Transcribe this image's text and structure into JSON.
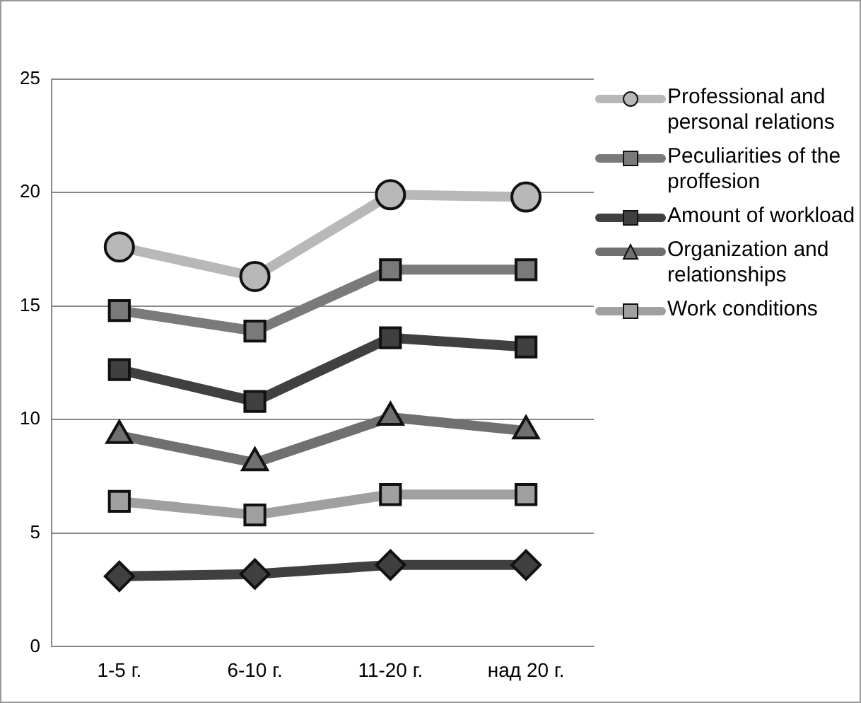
{
  "chart_data": {
    "type": "line",
    "categories": [
      "1-5 г.",
      "6-10 г.",
      "11-20 г.",
      "над 20 г."
    ],
    "series": [
      {
        "name": "Professional and personal relations",
        "color": "#b8b8b8",
        "marker": "circle",
        "values": [
          17.6,
          16.3,
          19.9,
          19.8
        ]
      },
      {
        "name": "Peculiarities of the proffesion",
        "color": "#7a7a7a",
        "marker": "square",
        "values": [
          14.8,
          13.9,
          16.6,
          16.6
        ]
      },
      {
        "name": "Amount of workload",
        "color": "#404040",
        "marker": "square",
        "values": [
          12.2,
          10.8,
          13.6,
          13.2
        ]
      },
      {
        "name": "Organization and relationships",
        "color": "#707070",
        "marker": "triangle",
        "values": [
          9.3,
          8.1,
          10.1,
          9.5
        ]
      },
      {
        "name": "Work conditions",
        "color": "#a0a0a0",
        "marker": "square",
        "values": [
          6.4,
          5.8,
          6.7,
          6.7
        ]
      },
      {
        "color": "#404040",
        "marker": "diamond",
        "values": [
          3.1,
          3.2,
          3.6,
          3.6
        ]
      }
    ],
    "ylim": [
      0,
      25
    ],
    "yticks": [
      0,
      5,
      10,
      15,
      20,
      25
    ],
    "grid": "y",
    "legend": "right"
  }
}
